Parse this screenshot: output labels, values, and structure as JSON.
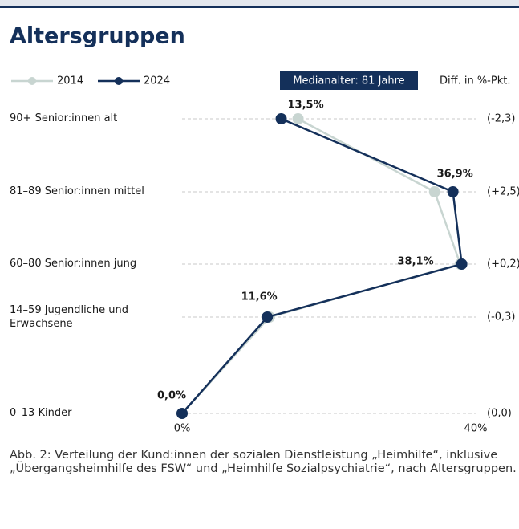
{
  "chart_data": {
    "type": "line",
    "orientation": "horizontal",
    "title": "Altersgruppen",
    "categories": [
      "90+ Senior:innen alt",
      "81–89 Senior:innen mittel",
      "60–80 Senior:innen jung",
      "14–59 Jugendliche und Erwachsene",
      "0–13 Kinder"
    ],
    "series": [
      {
        "name": "2014",
        "color": "#c8d5d1",
        "values": [
          15.8,
          34.4,
          37.9,
          11.9,
          0.0
        ]
      },
      {
        "name": "2024",
        "color": "#14305a",
        "values": [
          13.5,
          36.9,
          38.1,
          11.6,
          0.0
        ],
        "value_labels": [
          "13,5%",
          "36,9%",
          "38,1%",
          "11,6%",
          "0,0%"
        ]
      }
    ],
    "xlim": [
      0,
      40
    ],
    "xticks": [
      {
        "value": 0,
        "label": "0%"
      },
      {
        "value": 40,
        "label": "40%"
      }
    ],
    "grid": true,
    "annotations": {
      "median": "Medianalter: 81 Jahre",
      "diff_header": "Diff. in %-Pkt.",
      "diffs": [
        "(-2,3)",
        "(+2,5)",
        "(+0,2)",
        "(-0,3)",
        "(0,0)"
      ]
    },
    "caption": "Abb. 2: Verteilung der Kund:innen der sozialen Dienstleistung „Heimhilfe“, inklusive „Übergangsheimhilfe des FSW“ und „Heimhilfe Sozialpsychiatrie“, nach Altersgruppen."
  }
}
